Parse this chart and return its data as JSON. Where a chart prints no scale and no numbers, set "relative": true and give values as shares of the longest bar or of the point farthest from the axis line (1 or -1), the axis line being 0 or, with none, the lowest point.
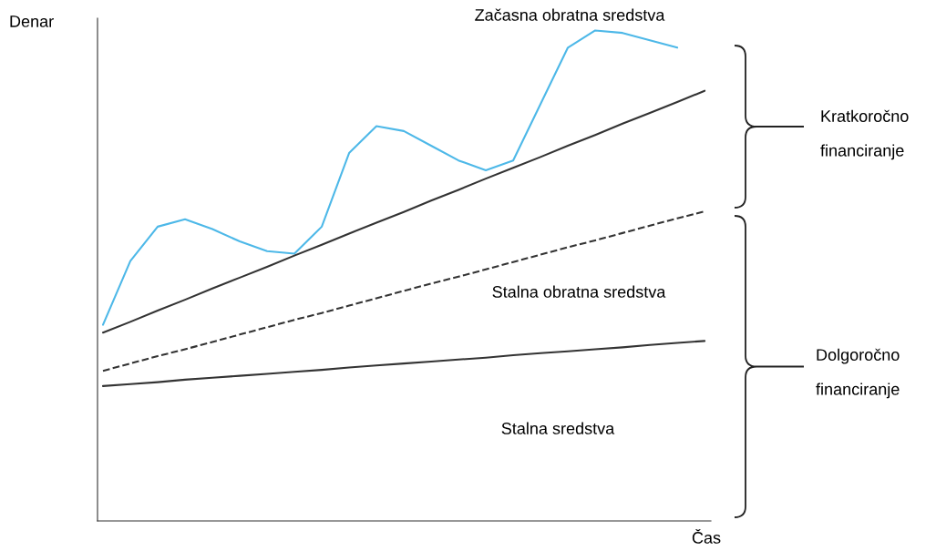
{
  "chart_data": {
    "type": "line",
    "relative": true,
    "xlabel": "Čas",
    "ylabel": "Denar",
    "legend": false,
    "marker": "none",
    "categories": [
      null,
      null,
      null,
      null,
      null,
      null,
      null,
      null,
      null,
      null,
      null,
      null,
      null,
      null,
      null,
      null,
      null,
      null,
      null,
      null,
      null,
      null,
      null
    ],
    "series": [
      {
        "color": "#4db8e8",
        "line_style": "solid",
        "values": [
          0.4,
          0.53,
          0.6,
          0.615,
          0.595,
          0.57,
          0.55,
          0.545,
          0.6,
          0.75,
          0.805,
          0.795,
          0.765,
          0.735,
          0.715,
          0.735,
          0.85,
          0.965,
          1.0,
          0.995,
          0.98,
          0.965,
          null
        ]
      },
      {
        "color": "#333333",
        "line_style": "solid",
        "values": [
          0.384,
          0.406,
          0.429,
          0.451,
          0.474,
          0.496,
          0.518,
          0.541,
          0.563,
          0.586,
          0.608,
          0.63,
          0.653,
          0.675,
          0.698,
          0.72,
          0.742,
          0.765,
          0.787,
          0.81,
          0.832,
          0.854,
          0.877
        ]
      },
      {
        "color": "#333333",
        "line_style": "dashed",
        "values": [
          0.306,
          0.321,
          0.336,
          0.35,
          0.365,
          0.38,
          0.395,
          0.41,
          0.424,
          0.439,
          0.454,
          0.469,
          0.484,
          0.498,
          0.513,
          0.528,
          0.543,
          0.558,
          0.572,
          0.587,
          0.602,
          0.617,
          0.631
        ]
      },
      {
        "color": "#333333",
        "line_style": "solid",
        "values": [
          0.275,
          0.279,
          0.283,
          0.288,
          0.292,
          0.296,
          0.3,
          0.304,
          0.308,
          0.313,
          0.317,
          0.321,
          0.325,
          0.329,
          0.333,
          0.338,
          0.342,
          0.346,
          0.35,
          0.354,
          0.359,
          0.363,
          0.367
        ]
      }
    ],
    "annotations": [
      "Začasna obratna sredstva",
      "Stalna obratna sredstva",
      "Stalna sredstva",
      "Kratkoročno\nfinanciranje",
      "Dolgoročno\nfinanciranje"
    ]
  }
}
